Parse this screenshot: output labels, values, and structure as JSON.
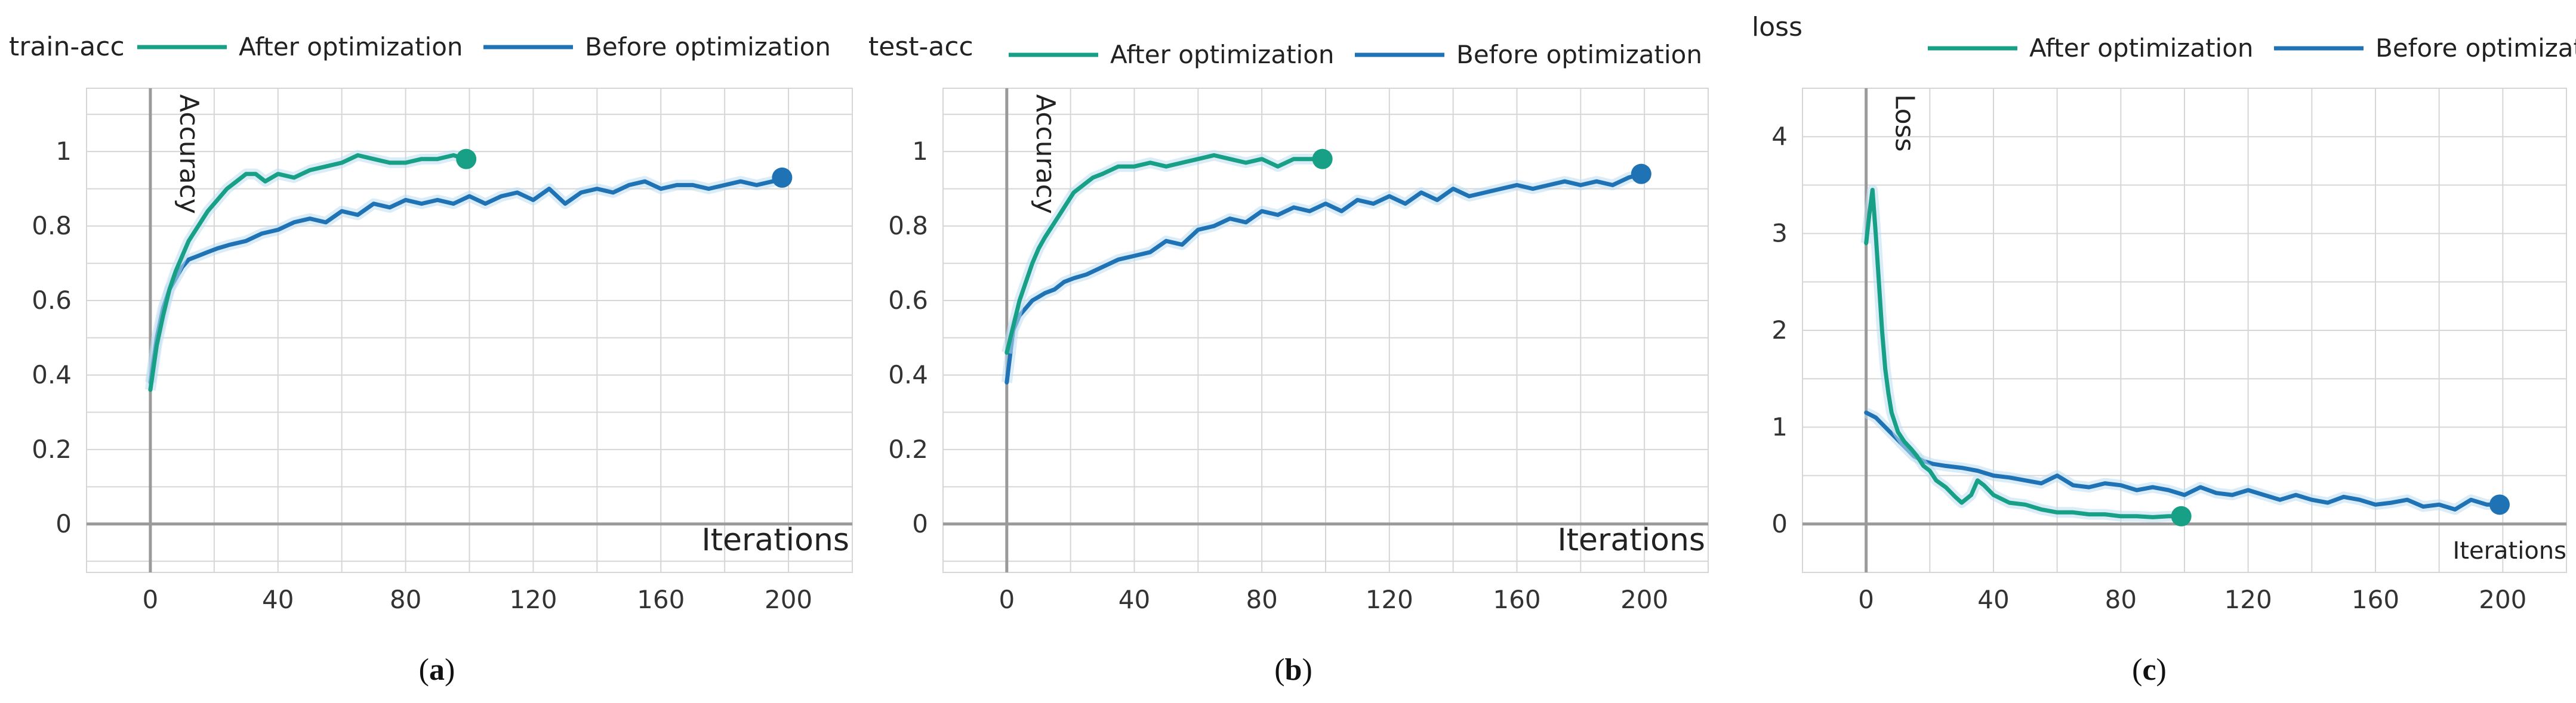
{
  "colors": {
    "after": "#17a085",
    "before": "#1f73b5",
    "band": "#bcdcf0",
    "grid": "#d6d6d6",
    "axis": "#9a9a9a",
    "text": "#333333"
  },
  "chart_data": [
    {
      "type": "line",
      "panel_title": "train-acc",
      "caption_text": "a",
      "ylabel": "Accuracy",
      "xlabel": "Iterations",
      "xlim": [
        -20,
        220
      ],
      "ylim": [
        -0.13,
        1.17
      ],
      "x_ticks": [
        0,
        40,
        80,
        120,
        160,
        200
      ],
      "y_ticks": [
        0,
        0.2,
        0.4,
        0.6,
        0.8,
        1
      ],
      "y_tick_labels": [
        "0",
        "0.2",
        "0.4",
        "0.6",
        "0.8",
        "1"
      ],
      "legend": [
        "After optimization",
        "Before optimization"
      ],
      "series": [
        {
          "name": "After optimization",
          "x": [
            0,
            2,
            4,
            6,
            8,
            10,
            12,
            15,
            18,
            21,
            24,
            27,
            30,
            33,
            36,
            40,
            45,
            50,
            55,
            60,
            65,
            70,
            75,
            80,
            85,
            90,
            95,
            99
          ],
          "y": [
            0.36,
            0.48,
            0.56,
            0.63,
            0.68,
            0.72,
            0.76,
            0.8,
            0.84,
            0.87,
            0.9,
            0.92,
            0.94,
            0.94,
            0.92,
            0.94,
            0.93,
            0.95,
            0.96,
            0.97,
            0.99,
            0.98,
            0.97,
            0.97,
            0.98,
            0.98,
            0.99,
            0.98
          ]
        },
        {
          "name": "Before optimization",
          "x": [
            0,
            2,
            4,
            6,
            8,
            10,
            12,
            15,
            18,
            21,
            25,
            30,
            35,
            40,
            45,
            50,
            55,
            60,
            65,
            70,
            75,
            80,
            85,
            90,
            95,
            100,
            105,
            110,
            115,
            120,
            125,
            130,
            135,
            140,
            145,
            150,
            155,
            160,
            165,
            170,
            175,
            180,
            185,
            190,
            195,
            198
          ],
          "y": [
            0.38,
            0.5,
            0.58,
            0.63,
            0.66,
            0.69,
            0.71,
            0.72,
            0.73,
            0.74,
            0.75,
            0.76,
            0.78,
            0.79,
            0.81,
            0.82,
            0.81,
            0.84,
            0.83,
            0.86,
            0.85,
            0.87,
            0.86,
            0.87,
            0.86,
            0.88,
            0.86,
            0.88,
            0.89,
            0.87,
            0.9,
            0.86,
            0.89,
            0.9,
            0.89,
            0.91,
            0.92,
            0.9,
            0.91,
            0.91,
            0.9,
            0.91,
            0.92,
            0.91,
            0.92,
            0.93
          ]
        }
      ]
    },
    {
      "type": "line",
      "panel_title": "test-acc",
      "caption_text": "b",
      "ylabel": "Accuracy",
      "xlabel": "Iterations",
      "xlim": [
        -20,
        220
      ],
      "ylim": [
        -0.13,
        1.17
      ],
      "x_ticks": [
        0,
        40,
        80,
        120,
        160,
        200
      ],
      "y_ticks": [
        0,
        0.2,
        0.4,
        0.6,
        0.8,
        1
      ],
      "y_tick_labels": [
        "0",
        "0.2",
        "0.4",
        "0.6",
        "0.8",
        "1"
      ],
      "legend": [
        "After optimization",
        "Before optimization"
      ],
      "series": [
        {
          "name": "After optimization",
          "x": [
            0,
            2,
            4,
            6,
            8,
            10,
            12,
            15,
            18,
            21,
            24,
            27,
            30,
            35,
            40,
            45,
            50,
            55,
            60,
            65,
            70,
            75,
            80,
            85,
            90,
            95,
            99
          ],
          "y": [
            0.46,
            0.53,
            0.6,
            0.65,
            0.7,
            0.74,
            0.77,
            0.81,
            0.85,
            0.89,
            0.91,
            0.93,
            0.94,
            0.96,
            0.96,
            0.97,
            0.96,
            0.97,
            0.98,
            0.99,
            0.98,
            0.97,
            0.98,
            0.96,
            0.98,
            0.98,
            0.98
          ]
        },
        {
          "name": "Before optimization",
          "x": [
            0,
            2,
            4,
            6,
            8,
            10,
            12,
            15,
            18,
            21,
            25,
            30,
            35,
            40,
            45,
            50,
            55,
            60,
            65,
            70,
            75,
            80,
            85,
            90,
            95,
            100,
            105,
            110,
            115,
            120,
            125,
            130,
            135,
            140,
            145,
            150,
            155,
            160,
            165,
            170,
            175,
            180,
            185,
            190,
            195,
            199
          ],
          "y": [
            0.38,
            0.52,
            0.56,
            0.58,
            0.6,
            0.61,
            0.62,
            0.63,
            0.65,
            0.66,
            0.67,
            0.69,
            0.71,
            0.72,
            0.73,
            0.76,
            0.75,
            0.79,
            0.8,
            0.82,
            0.81,
            0.84,
            0.83,
            0.85,
            0.84,
            0.86,
            0.84,
            0.87,
            0.86,
            0.88,
            0.86,
            0.89,
            0.87,
            0.9,
            0.88,
            0.89,
            0.9,
            0.91,
            0.9,
            0.91,
            0.92,
            0.91,
            0.92,
            0.91,
            0.93,
            0.94
          ]
        }
      ]
    },
    {
      "type": "line",
      "panel_title": "loss",
      "caption_text": "c",
      "ylabel": "Loss",
      "xlabel": "Iterations",
      "xlim": [
        -20,
        220
      ],
      "ylim": [
        -0.5,
        4.5
      ],
      "x_ticks": [
        0,
        40,
        80,
        120,
        160,
        200
      ],
      "y_ticks": [
        0,
        1,
        2,
        3,
        4
      ],
      "y_tick_labels": [
        "0",
        "1",
        "2",
        "3",
        "4"
      ],
      "legend": [
        "After optimization",
        "Before optimization"
      ],
      "series": [
        {
          "name": "After optimization",
          "x": [
            0,
            1,
            2,
            3,
            4,
            5,
            6,
            7,
            8,
            10,
            12,
            14,
            16,
            18,
            20,
            22,
            25,
            28,
            30,
            33,
            35,
            37,
            40,
            45,
            50,
            55,
            60,
            65,
            70,
            75,
            80,
            85,
            90,
            95,
            99
          ],
          "y": [
            2.9,
            3.2,
            3.45,
            3.0,
            2.5,
            2.0,
            1.6,
            1.35,
            1.15,
            0.95,
            0.85,
            0.78,
            0.7,
            0.6,
            0.55,
            0.45,
            0.38,
            0.28,
            0.22,
            0.3,
            0.45,
            0.4,
            0.3,
            0.22,
            0.2,
            0.15,
            0.12,
            0.12,
            0.1,
            0.1,
            0.08,
            0.08,
            0.07,
            0.08,
            0.08
          ]
        },
        {
          "name": "Before optimization",
          "x": [
            0,
            3,
            6,
            9,
            12,
            15,
            18,
            21,
            25,
            30,
            35,
            40,
            45,
            50,
            55,
            60,
            65,
            70,
            75,
            80,
            85,
            90,
            95,
            100,
            105,
            110,
            115,
            120,
            125,
            130,
            135,
            140,
            145,
            150,
            155,
            160,
            165,
            170,
            175,
            180,
            185,
            190,
            195,
            199
          ],
          "y": [
            1.15,
            1.1,
            1.0,
            0.9,
            0.8,
            0.7,
            0.65,
            0.62,
            0.6,
            0.58,
            0.55,
            0.5,
            0.48,
            0.45,
            0.42,
            0.5,
            0.4,
            0.38,
            0.42,
            0.4,
            0.35,
            0.38,
            0.35,
            0.3,
            0.38,
            0.32,
            0.3,
            0.35,
            0.3,
            0.25,
            0.3,
            0.25,
            0.22,
            0.28,
            0.25,
            0.2,
            0.22,
            0.25,
            0.18,
            0.2,
            0.15,
            0.25,
            0.2,
            0.2
          ]
        }
      ]
    }
  ]
}
